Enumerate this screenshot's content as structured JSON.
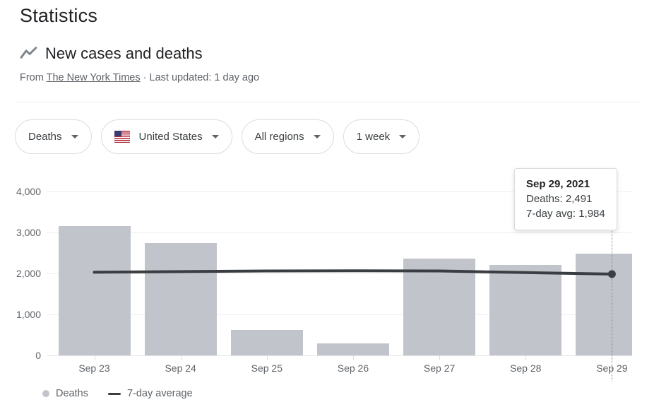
{
  "page": {
    "title": "Statistics"
  },
  "section": {
    "icon": "line-chart-icon",
    "heading": "New cases and deaths",
    "source_prefix": "From",
    "source_link": "The New York Times",
    "source_sep": "·",
    "source_updated": "Last updated: 1 day ago"
  },
  "filters": [
    {
      "label": "Deaths"
    },
    {
      "label": "United States",
      "flag": "united-states"
    },
    {
      "label": "All regions"
    },
    {
      "label": "1 week"
    }
  ],
  "tooltip": {
    "title": "Sep 29, 2021",
    "deaths": "Deaths: 2,491",
    "avg": "7-day avg: 1,984"
  },
  "legend": {
    "items": [
      {
        "marker": "dot",
        "label": "Deaths"
      },
      {
        "marker": "dash",
        "label": "7-day average"
      }
    ]
  },
  "colors": {
    "bar": "#c1c5cb",
    "line": "#3a3d41",
    "grid": "#eceef0",
    "axis_text": "#5f6368",
    "chip_border": "#dadce0"
  },
  "chart_data": {
    "type": "bar",
    "title": "New cases and deaths — Deaths, United States, All regions, 1 week",
    "categories": [
      "Sep 23",
      "Sep 24",
      "Sep 25",
      "Sep 26",
      "Sep 27",
      "Sep 28",
      "Sep 29"
    ],
    "series": [
      {
        "name": "Deaths",
        "type": "bar",
        "color": "#c1c5cb",
        "values": [
          3160,
          2740,
          620,
          295,
          2370,
          2200,
          2491
        ]
      },
      {
        "name": "7-day average",
        "type": "line",
        "color": "#3a3d41",
        "values": [
          2030,
          2045,
          2060,
          2065,
          2060,
          2020,
          1984
        ]
      }
    ],
    "ylim": [
      0,
      4000
    ],
    "yticks": [
      0,
      1000,
      2000,
      3000,
      4000
    ],
    "ytick_labels": [
      "0",
      "1,000",
      "2,000",
      "3,000",
      "4,000"
    ],
    "xlabel": "",
    "ylabel": "",
    "grid": "horizontal",
    "legend_position": "bottom-left",
    "highlight": {
      "index": 6,
      "category": "Sep 29",
      "deaths": 2491,
      "avg": 1984
    }
  }
}
